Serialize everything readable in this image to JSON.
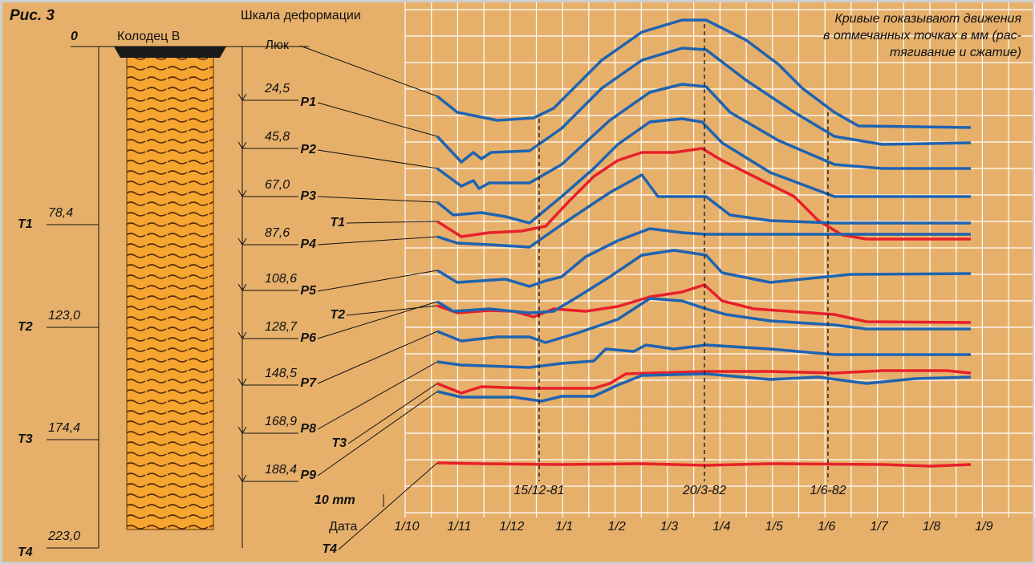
{
  "figure": {
    "label": "Рис. 3"
  },
  "well": {
    "zero": "0",
    "title": "Колодец В",
    "depths": [
      {
        "label": "T1",
        "value": "78,4"
      },
      {
        "label": "T2",
        "value": "123,0"
      },
      {
        "label": "T3",
        "value": "174,4"
      },
      {
        "label": "T4",
        "value": "223,0"
      }
    ]
  },
  "scale": {
    "title": "Шкала деформации",
    "points": [
      {
        "value": "24,5",
        "label": "P1"
      },
      {
        "value": "45,8",
        "label": "P2"
      },
      {
        "value": "67,0",
        "label": "P3"
      },
      {
        "value": "87,6",
        "label": "P4"
      },
      {
        "value": "108,6",
        "label": "P5"
      },
      {
        "value": "128,7",
        "label": "P6"
      },
      {
        "value": "148,5",
        "label": "P7"
      },
      {
        "value": "168,9",
        "label": "P8"
      },
      {
        "value": "188,4",
        "label": "P9"
      }
    ]
  },
  "curves": {
    "labels": [
      "Люк",
      "P1",
      "P2",
      "P3",
      "T1",
      "P4",
      "P5",
      "T2",
      "P6",
      "P7",
      "P8",
      "T3",
      "P9",
      "T4"
    ]
  },
  "note": [
    "Кривые показывают движения",
    "в отмечанных точках в мм (рас-",
    "тягивание и сжатие)"
  ],
  "events": [
    "15/12-81",
    "20/3-82",
    "1/6-82"
  ],
  "scale_bar": "10 mm",
  "axis": {
    "title": "Дата",
    "months": [
      "1/10",
      "1/11",
      "1/12",
      "1/1",
      "1/2",
      "1/3",
      "1/4",
      "1/5",
      "1/6",
      "1/7",
      "1/8",
      "1/9"
    ]
  }
}
